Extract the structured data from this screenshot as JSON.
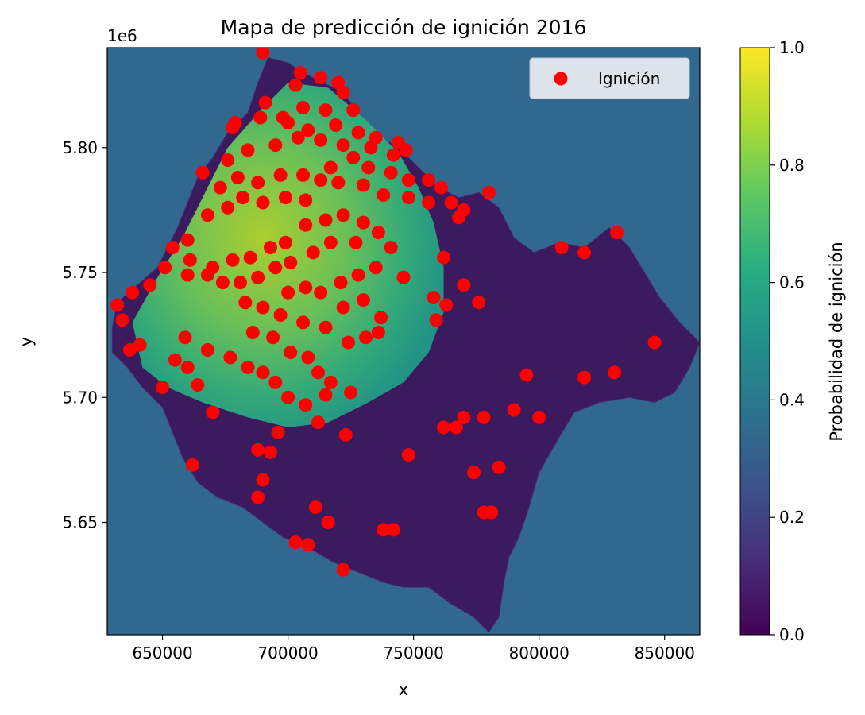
{
  "chart_data": {
    "type": "scatter",
    "title": "Mapa de predicción de ignición 2016",
    "xlabel": "x",
    "ylabel": "y",
    "y_offset_label": "1e6",
    "xlim": [
      628000,
      864000
    ],
    "ylim": [
      5605000,
      5840000
    ],
    "x_ticks": [
      650000,
      700000,
      750000,
      800000,
      850000
    ],
    "x_tick_labels": [
      "650000",
      "700000",
      "750000",
      "800000",
      "850000"
    ],
    "y_ticks": [
      5650000,
      5700000,
      5750000,
      5800000
    ],
    "y_tick_labels": [
      "5.65",
      "5.70",
      "5.75",
      "5.80"
    ],
    "background_value": 0.33,
    "colormap": "viridis",
    "colorbar": {
      "label": "Probabilidad de ignición",
      "range": [
        0.0,
        1.0
      ],
      "ticks": [
        0.0,
        0.2,
        0.4,
        0.6,
        0.8,
        1.0
      ],
      "tick_labels": [
        "0.0",
        "0.2",
        "0.4",
        "0.6",
        "0.8",
        "1.0"
      ]
    },
    "legend": {
      "placement": "top-right",
      "entries": [
        {
          "label": "Ignición",
          "color": "#ff0000"
        }
      ]
    },
    "region_boundary": [
      [
        632000,
        5738000
      ],
      [
        640000,
        5745000
      ],
      [
        648000,
        5752000
      ],
      [
        652000,
        5760000
      ],
      [
        656000,
        5768000
      ],
      [
        660000,
        5778000
      ],
      [
        664000,
        5788000
      ],
      [
        670000,
        5796000
      ],
      [
        676000,
        5806000
      ],
      [
        684000,
        5814000
      ],
      [
        688000,
        5826000
      ],
      [
        692000,
        5836000
      ],
      [
        700000,
        5834000
      ],
      [
        706000,
        5830000
      ],
      [
        714000,
        5826000
      ],
      [
        722000,
        5822000
      ],
      [
        728000,
        5814000
      ],
      [
        734000,
        5806000
      ],
      [
        744000,
        5800000
      ],
      [
        752000,
        5792000
      ],
      [
        760000,
        5784000
      ],
      [
        768000,
        5780000
      ],
      [
        776000,
        5782000
      ],
      [
        784000,
        5776000
      ],
      [
        790000,
        5764000
      ],
      [
        798000,
        5758000
      ],
      [
        808000,
        5762000
      ],
      [
        818000,
        5760000
      ],
      [
        828000,
        5768000
      ],
      [
        836000,
        5760000
      ],
      [
        842000,
        5750000
      ],
      [
        848000,
        5740000
      ],
      [
        856000,
        5730000
      ],
      [
        864000,
        5722000
      ],
      [
        860000,
        5712000
      ],
      [
        854000,
        5702000
      ],
      [
        846000,
        5698000
      ],
      [
        836000,
        5700000
      ],
      [
        824000,
        5698000
      ],
      [
        814000,
        5694000
      ],
      [
        808000,
        5684000
      ],
      [
        800000,
        5670000
      ],
      [
        796000,
        5656000
      ],
      [
        792000,
        5644000
      ],
      [
        788000,
        5636000
      ],
      [
        786000,
        5626000
      ],
      [
        784000,
        5612000
      ],
      [
        780000,
        5606000
      ],
      [
        774000,
        5612000
      ],
      [
        764000,
        5618000
      ],
      [
        756000,
        5624000
      ],
      [
        746000,
        5624000
      ],
      [
        738000,
        5626000
      ],
      [
        728000,
        5630000
      ],
      [
        718000,
        5634000
      ],
      [
        708000,
        5640000
      ],
      [
        698000,
        5644000
      ],
      [
        690000,
        5650000
      ],
      [
        682000,
        5656000
      ],
      [
        672000,
        5660000
      ],
      [
        664000,
        5666000
      ],
      [
        658000,
        5676000
      ],
      [
        654000,
        5686000
      ],
      [
        650000,
        5696000
      ],
      [
        642000,
        5704000
      ],
      [
        636000,
        5712000
      ],
      [
        630000,
        5718000
      ],
      [
        630000,
        5728000
      ]
    ],
    "high_zone_boundary": [
      [
        638000,
        5730000
      ],
      [
        648000,
        5748000
      ],
      [
        658000,
        5764000
      ],
      [
        666000,
        5780000
      ],
      [
        676000,
        5800000
      ],
      [
        690000,
        5816000
      ],
      [
        700000,
        5826000
      ],
      [
        716000,
        5824000
      ],
      [
        730000,
        5812000
      ],
      [
        744000,
        5798000
      ],
      [
        752000,
        5784000
      ],
      [
        758000,
        5770000
      ],
      [
        762000,
        5752000
      ],
      [
        762000,
        5734000
      ],
      [
        756000,
        5718000
      ],
      [
        746000,
        5706000
      ],
      [
        732000,
        5698000
      ],
      [
        716000,
        5690000
      ],
      [
        700000,
        5688000
      ],
      [
        684000,
        5692000
      ],
      [
        666000,
        5698000
      ],
      [
        652000,
        5704000
      ],
      [
        642000,
        5712000
      ]
    ],
    "points": [
      [
        690000,
        5838000
      ],
      [
        705000,
        5830000
      ],
      [
        713000,
        5828000
      ],
      [
        720000,
        5826000
      ],
      [
        703000,
        5825000
      ],
      [
        722000,
        5822000
      ],
      [
        691000,
        5818000
      ],
      [
        706000,
        5816000
      ],
      [
        715000,
        5815000
      ],
      [
        726000,
        5815000
      ],
      [
        698000,
        5812000
      ],
      [
        689000,
        5812000
      ],
      [
        679000,
        5810000
      ],
      [
        678000,
        5808000
      ],
      [
        700000,
        5810000
      ],
      [
        708000,
        5807000
      ],
      [
        719000,
        5809000
      ],
      [
        728000,
        5806000
      ],
      [
        735000,
        5804000
      ],
      [
        744000,
        5802000
      ],
      [
        747000,
        5799000
      ],
      [
        742000,
        5797000
      ],
      [
        733000,
        5800000
      ],
      [
        722000,
        5801000
      ],
      [
        713000,
        5803000
      ],
      [
        704000,
        5804000
      ],
      [
        695000,
        5801000
      ],
      [
        684000,
        5799000
      ],
      [
        676000,
        5795000
      ],
      [
        666000,
        5790000
      ],
      [
        673000,
        5784000
      ],
      [
        680000,
        5788000
      ],
      [
        688000,
        5786000
      ],
      [
        697000,
        5789000
      ],
      [
        706000,
        5789000
      ],
      [
        717000,
        5792000
      ],
      [
        726000,
        5796000
      ],
      [
        732000,
        5792000
      ],
      [
        741000,
        5790000
      ],
      [
        748000,
        5787000
      ],
      [
        756000,
        5787000
      ],
      [
        761000,
        5784000
      ],
      [
        756000,
        5778000
      ],
      [
        748000,
        5780000
      ],
      [
        738000,
        5781000
      ],
      [
        730000,
        5785000
      ],
      [
        720000,
        5786000
      ],
      [
        713000,
        5787000
      ],
      [
        707000,
        5779000
      ],
      [
        699000,
        5780000
      ],
      [
        690000,
        5778000
      ],
      [
        682000,
        5780000
      ],
      [
        676000,
        5776000
      ],
      [
        668000,
        5773000
      ],
      [
        660000,
        5763000
      ],
      [
        654000,
        5760000
      ],
      [
        661000,
        5755000
      ],
      [
        670000,
        5752000
      ],
      [
        678000,
        5755000
      ],
      [
        685000,
        5756000
      ],
      [
        693000,
        5760000
      ],
      [
        699000,
        5762000
      ],
      [
        707000,
        5769000
      ],
      [
        715000,
        5771000
      ],
      [
        722000,
        5773000
      ],
      [
        730000,
        5770000
      ],
      [
        736000,
        5766000
      ],
      [
        741000,
        5760000
      ],
      [
        727000,
        5762000
      ],
      [
        717000,
        5762000
      ],
      [
        710000,
        5758000
      ],
      [
        701000,
        5754000
      ],
      [
        695000,
        5752000
      ],
      [
        688000,
        5748000
      ],
      [
        681000,
        5746000
      ],
      [
        674000,
        5746000
      ],
      [
        668000,
        5749000
      ],
      [
        660000,
        5749000
      ],
      [
        651000,
        5752000
      ],
      [
        645000,
        5745000
      ],
      [
        638000,
        5742000
      ],
      [
        632000,
        5737000
      ],
      [
        634000,
        5731000
      ],
      [
        637000,
        5719000
      ],
      [
        641000,
        5721000
      ],
      [
        655000,
        5715000
      ],
      [
        660000,
        5712000
      ],
      [
        664000,
        5705000
      ],
      [
        670000,
        5694000
      ],
      [
        650000,
        5704000
      ],
      [
        659000,
        5724000
      ],
      [
        668000,
        5719000
      ],
      [
        677000,
        5716000
      ],
      [
        684000,
        5712000
      ],
      [
        690000,
        5710000
      ],
      [
        695000,
        5706000
      ],
      [
        700000,
        5700000
      ],
      [
        707000,
        5697000
      ],
      [
        715000,
        5701000
      ],
      [
        725000,
        5702000
      ],
      [
        712000,
        5690000
      ],
      [
        723000,
        5685000
      ],
      [
        696000,
        5686000
      ],
      [
        688000,
        5679000
      ],
      [
        693000,
        5678000
      ],
      [
        690000,
        5667000
      ],
      [
        688000,
        5660000
      ],
      [
        711000,
        5656000
      ],
      [
        716000,
        5650000
      ],
      [
        703000,
        5642000
      ],
      [
        708000,
        5641000
      ],
      [
        722000,
        5631000
      ],
      [
        738000,
        5647000
      ],
      [
        742000,
        5647000
      ],
      [
        748000,
        5677000
      ],
      [
        662000,
        5673000
      ],
      [
        701000,
        5718000
      ],
      [
        708000,
        5716000
      ],
      [
        712000,
        5710000
      ],
      [
        717000,
        5706000
      ],
      [
        724000,
        5722000
      ],
      [
        731000,
        5724000
      ],
      [
        736000,
        5726000
      ],
      [
        715000,
        5728000
      ],
      [
        706000,
        5730000
      ],
      [
        697000,
        5733000
      ],
      [
        690000,
        5736000
      ],
      [
        683000,
        5738000
      ],
      [
        686000,
        5726000
      ],
      [
        694000,
        5724000
      ],
      [
        700000,
        5742000
      ],
      [
        707000,
        5744000
      ],
      [
        713000,
        5742000
      ],
      [
        721000,
        5746000
      ],
      [
        728000,
        5749000
      ],
      [
        735000,
        5752000
      ],
      [
        746000,
        5748000
      ],
      [
        722000,
        5736000
      ],
      [
        730000,
        5739000
      ],
      [
        737000,
        5732000
      ],
      [
        758000,
        5740000
      ],
      [
        759000,
        5731000
      ],
      [
        763000,
        5737000
      ],
      [
        770000,
        5745000
      ],
      [
        776000,
        5738000
      ],
      [
        762000,
        5756000
      ],
      [
        768000,
        5772000
      ],
      [
        770000,
        5775000
      ],
      [
        765000,
        5778000
      ],
      [
        780000,
        5782000
      ],
      [
        809000,
        5760000
      ],
      [
        818000,
        5758000
      ],
      [
        831000,
        5766000
      ],
      [
        846000,
        5722000
      ],
      [
        830000,
        5710000
      ],
      [
        818000,
        5708000
      ],
      [
        795000,
        5709000
      ],
      [
        800000,
        5692000
      ],
      [
        790000,
        5695000
      ],
      [
        778000,
        5692000
      ],
      [
        770000,
        5692000
      ],
      [
        767000,
        5688000
      ],
      [
        762000,
        5688000
      ],
      [
        774000,
        5670000
      ],
      [
        784000,
        5672000
      ],
      [
        778000,
        5654000
      ],
      [
        781000,
        5654000
      ]
    ]
  }
}
